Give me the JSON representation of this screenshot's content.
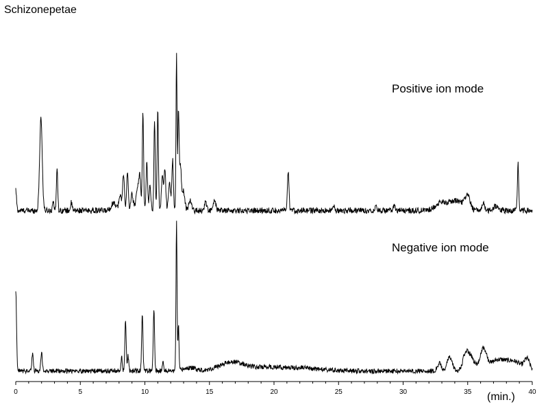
{
  "chart_data": {
    "type": "line",
    "title": "Schizonepetae",
    "xlabel": "",
    "x_unit_label": "(min.)",
    "xlim": [
      0,
      40
    ],
    "x_ticks": [
      0,
      5,
      10,
      15,
      20,
      25,
      30,
      35,
      40
    ],
    "grid": false,
    "series": [
      {
        "name": "Positive ion mode",
        "ylim": [
          0,
          100
        ],
        "baseline": 2,
        "noise": 1.8,
        "start": [
          0,
          13
        ],
        "peaks": [
          [
            1.95,
            59,
            0.1
          ],
          [
            2.9,
            7,
            0.05
          ],
          [
            3.2,
            28,
            0.05
          ],
          [
            4.3,
            5,
            0.06
          ],
          [
            7.6,
            5,
            0.2
          ],
          [
            8.1,
            9,
            0.1
          ],
          [
            8.35,
            23,
            0.07
          ],
          [
            8.65,
            24,
            0.06
          ],
          [
            9.0,
            10,
            0.1
          ],
          [
            9.4,
            13,
            0.1
          ],
          [
            9.6,
            22,
            0.08
          ],
          [
            9.85,
            62,
            0.05
          ],
          [
            10.15,
            30,
            0.06
          ],
          [
            10.4,
            17,
            0.06
          ],
          [
            10.75,
            58,
            0.05
          ],
          [
            11.0,
            64,
            0.05
          ],
          [
            11.35,
            22,
            0.07
          ],
          [
            11.55,
            25,
            0.07
          ],
          [
            11.9,
            18,
            0.08
          ],
          [
            12.15,
            32,
            0.06
          ],
          [
            12.45,
            98,
            0.04
          ],
          [
            12.6,
            60,
            0.05
          ],
          [
            12.75,
            28,
            0.08
          ],
          [
            13.0,
            12,
            0.1
          ],
          [
            13.5,
            7,
            0.1
          ],
          [
            14.7,
            6,
            0.08
          ],
          [
            15.4,
            6,
            0.1
          ],
          [
            21.1,
            24,
            0.06
          ],
          [
            24.6,
            4,
            0.06
          ],
          [
            27.9,
            5,
            0.06
          ],
          [
            29.3,
            3,
            0.08
          ],
          [
            33.0,
            5,
            0.5
          ],
          [
            34.2,
            6,
            0.5
          ],
          [
            35.0,
            8,
            0.2
          ],
          [
            36.2,
            5,
            0.1
          ],
          [
            37.2,
            3,
            0.2
          ],
          [
            38.9,
            30,
            0.05
          ]
        ]
      },
      {
        "name": "Negative ion mode",
        "ylim": [
          0,
          100
        ],
        "baseline": 2,
        "noise": 1.6,
        "start": [
          0,
          54
        ],
        "peaks": [
          [
            1.3,
            11,
            0.06
          ],
          [
            2.0,
            12,
            0.06
          ],
          [
            8.2,
            10,
            0.05
          ],
          [
            8.5,
            34,
            0.05
          ],
          [
            8.7,
            10,
            0.05
          ],
          [
            9.8,
            39,
            0.05
          ],
          [
            10.7,
            41,
            0.05
          ],
          [
            11.4,
            6,
            0.06
          ],
          [
            12.45,
            100,
            0.04
          ],
          [
            12.6,
            30,
            0.04
          ],
          [
            13.5,
            2,
            0.5
          ],
          [
            16.8,
            6,
            1.0
          ],
          [
            19.5,
            2,
            1.0
          ],
          [
            22.0,
            2,
            1.5
          ],
          [
            32.8,
            5,
            0.15
          ],
          [
            33.6,
            9,
            0.2
          ],
          [
            34.8,
            8,
            0.2
          ],
          [
            35.2,
            10,
            0.3
          ],
          [
            36.2,
            14,
            0.25
          ],
          [
            37.3,
            7,
            0.6
          ],
          [
            38.6,
            6,
            0.6
          ],
          [
            39.6,
            7,
            0.2
          ]
        ]
      }
    ]
  }
}
